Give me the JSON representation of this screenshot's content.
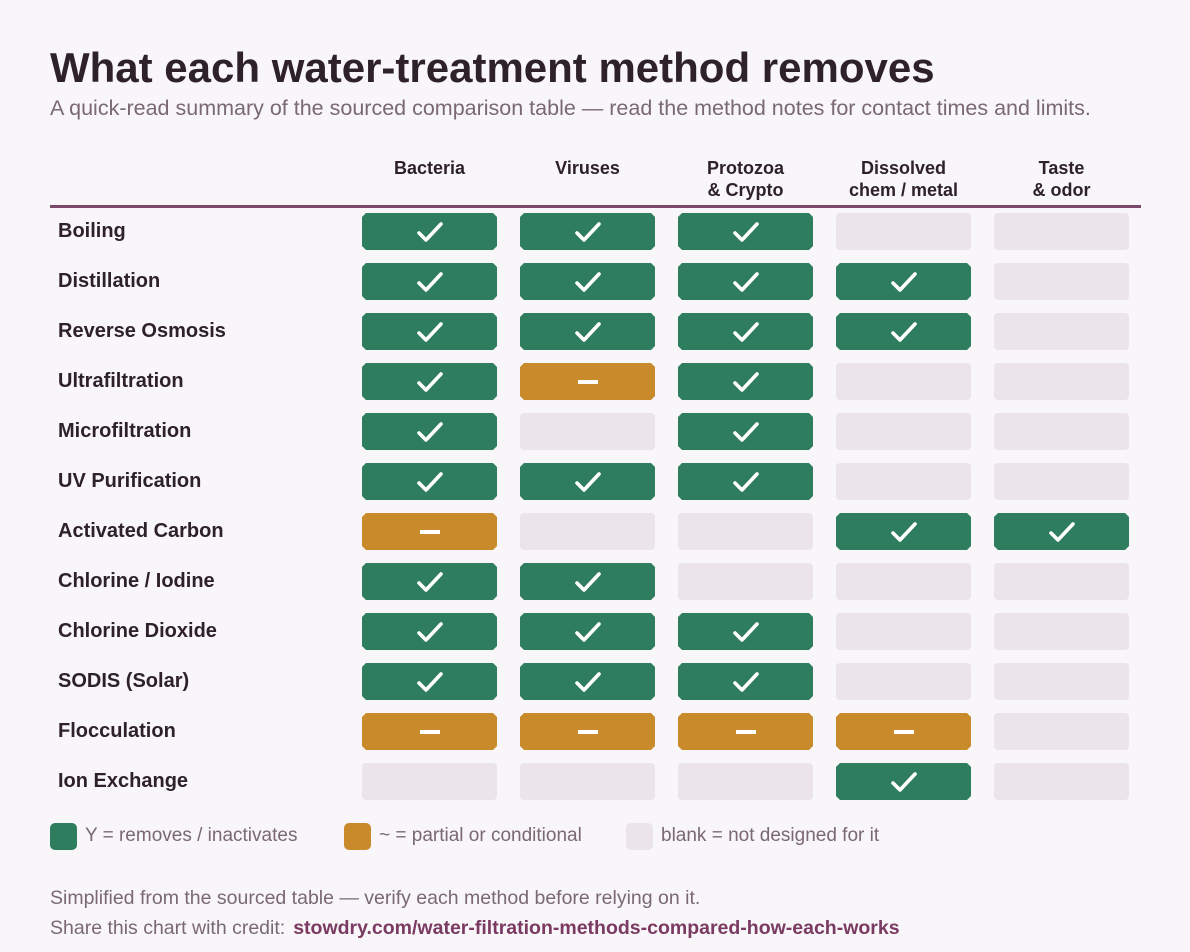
{
  "title": "What each water-treatment method removes",
  "subtitle": "A quick-read summary of the sourced comparison table — read the method notes for contact times and limits.",
  "chart_data": {
    "type": "table",
    "columns": [
      "Bacteria",
      "Viruses",
      "Protozoa\n& Crypto",
      "Dissolved\nchem / metal",
      "Taste\n& odor"
    ],
    "rows": [
      {
        "method": "Boiling",
        "values": [
          "Y",
          "Y",
          "Y",
          "",
          ""
        ]
      },
      {
        "method": "Distillation",
        "values": [
          "Y",
          "Y",
          "Y",
          "Y",
          ""
        ]
      },
      {
        "method": "Reverse Osmosis",
        "values": [
          "Y",
          "Y",
          "Y",
          "Y",
          ""
        ]
      },
      {
        "method": "Ultrafiltration",
        "values": [
          "Y",
          "~",
          "Y",
          "",
          ""
        ]
      },
      {
        "method": "Microfiltration",
        "values": [
          "Y",
          "",
          "Y",
          "",
          ""
        ]
      },
      {
        "method": "UV Purification",
        "values": [
          "Y",
          "Y",
          "Y",
          "",
          ""
        ]
      },
      {
        "method": "Activated Carbon",
        "values": [
          "~",
          "",
          "",
          "Y",
          "Y"
        ]
      },
      {
        "method": "Chlorine / Iodine",
        "values": [
          "Y",
          "Y",
          "",
          "",
          ""
        ]
      },
      {
        "method": "Chlorine Dioxide",
        "values": [
          "Y",
          "Y",
          "Y",
          "",
          ""
        ]
      },
      {
        "method": "SODIS (Solar)",
        "values": [
          "Y",
          "Y",
          "Y",
          "",
          ""
        ]
      },
      {
        "method": "Flocculation",
        "values": [
          "~",
          "~",
          "~",
          "~",
          ""
        ]
      },
      {
        "method": "Ion Exchange",
        "values": [
          "",
          "",
          "",
          "Y",
          ""
        ]
      }
    ]
  },
  "colors": {
    "removes": "#2e7d5e",
    "partial": "#c98a2c",
    "blank": "#ebe5e9",
    "rule": "#7a4a6a"
  },
  "legend": [
    {
      "key": "Y",
      "label": "Y = removes / inactivates"
    },
    {
      "key": "~",
      "label": "~ = partial or conditional"
    },
    {
      "key": "",
      "label": "blank = not designed for it"
    }
  ],
  "footer": {
    "note": "Simplified from the sourced table — verify each method before relying on it.",
    "credit_prefix": "Share this chart with credit:",
    "credit_url": "stowdry.com/water-filtration-methods-compared-how-each-works"
  }
}
